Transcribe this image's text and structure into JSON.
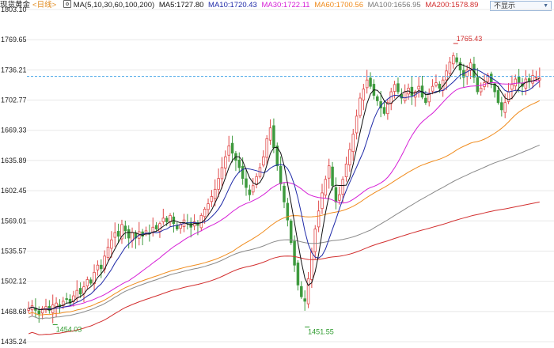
{
  "header": {
    "instrument": "现货黄金",
    "period": "<日线>",
    "ma_label": "MA(5,10,30,60,100,200)",
    "ma_values": [
      {
        "text": "MA5:1727.80",
        "color": "#111111"
      },
      {
        "text": "MA10:1720.43",
        "color": "#1f2aa8"
      },
      {
        "text": "MA30:1722.11",
        "color": "#d61fd6"
      },
      {
        "text": "MA60:1700.56",
        "color": "#f08c1e"
      },
      {
        "text": "MA100:1656.95",
        "color": "#7a7a7a"
      },
      {
        "text": "MA200:1578.89",
        "color": "#d22f2f"
      }
    ],
    "hide_button": "不显示",
    "gear_icon": "settings-icon"
  },
  "chart_data": {
    "type": "candlestick",
    "y_axis_ticks": [
      "1803.10",
      "1769.65",
      "1736.21",
      "1702.77",
      "1669.33",
      "1635.89",
      "1602.45",
      "1569.01",
      "1535.57",
      "1502.12",
      "1468.68",
      "1435.24"
    ],
    "ylim": [
      1435.24,
      1803.1
    ],
    "current_price_level": 1729.0,
    "annotations": [
      {
        "text": "1765.43",
        "value": 1765.43,
        "color": "#d22f2f"
      },
      {
        "text": "1454.03",
        "value": 1454.03,
        "color": "#2c9a2c"
      },
      {
        "text": "1451.55",
        "value": 1451.55,
        "color": "#2c9a2c"
      }
    ],
    "colors": {
      "up": "#e04848",
      "down": "#3e9a3e",
      "grid": "#e8e8e8",
      "current_line": "#4aa8e8"
    },
    "closes": [
      1472,
      1475,
      1470,
      1466,
      1472,
      1474,
      1470,
      1476,
      1478,
      1474,
      1480,
      1482,
      1478,
      1486,
      1492,
      1488,
      1496,
      1504,
      1500,
      1512,
      1520,
      1516,
      1530,
      1540,
      1548,
      1556,
      1552,
      1565,
      1558,
      1550,
      1556,
      1550,
      1557,
      1552,
      1558,
      1555,
      1562,
      1560,
      1566,
      1572,
      1568,
      1575,
      1566,
      1560,
      1565,
      1570,
      1566,
      1562,
      1568,
      1564,
      1575,
      1582,
      1588,
      1596,
      1604,
      1616,
      1628,
      1640,
      1652,
      1644,
      1636,
      1628,
      1616,
      1606,
      1598,
      1608,
      1618,
      1628,
      1640,
      1660,
      1672,
      1650,
      1630,
      1610,
      1590,
      1570,
      1545,
      1520,
      1498,
      1485,
      1480,
      1505,
      1535,
      1560,
      1580,
      1600,
      1615,
      1630,
      1608,
      1590,
      1598,
      1615,
      1632,
      1648,
      1665,
      1685,
      1705,
      1715,
      1725,
      1718,
      1708,
      1702,
      1694,
      1688,
      1700,
      1712,
      1720,
      1712,
      1705,
      1712,
      1716,
      1708,
      1712,
      1718,
      1706,
      1700,
      1710,
      1718,
      1722,
      1716,
      1725,
      1735,
      1745,
      1752,
      1745,
      1736,
      1728,
      1736,
      1744,
      1728,
      1712,
      1716,
      1722,
      1730,
      1722,
      1712,
      1700,
      1692,
      1700,
      1712,
      1720,
      1726,
      1722,
      1718,
      1726,
      1724,
      1730,
      1728,
      1727
    ]
  }
}
